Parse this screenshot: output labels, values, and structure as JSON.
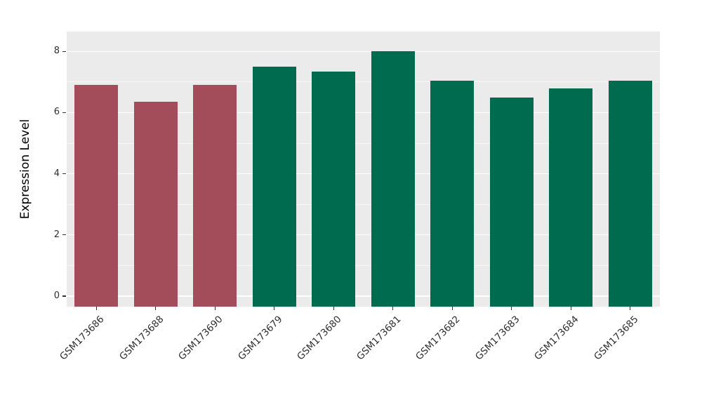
{
  "chart_data": {
    "type": "bar",
    "title": "",
    "xlabel": "",
    "ylabel": "Expression Level",
    "ylim": [
      0,
      8
    ],
    "yticks": [
      0,
      2,
      4,
      6,
      8
    ],
    "yticks_minor": [
      1,
      3,
      5,
      7
    ],
    "grid": true,
    "legend_position": "none",
    "plot_background": "#EBEBEB",
    "gridline_color": "#FFFFFF",
    "categories": [
      "GSM173686",
      "GSM173688",
      "GSM173690",
      "GSM173679",
      "GSM173680",
      "GSM173681",
      "GSM173682",
      "GSM173683",
      "GSM173684",
      "GSM173685"
    ],
    "values": [
      6.9,
      6.35,
      6.9,
      7.5,
      7.35,
      8.0,
      7.05,
      6.5,
      6.8,
      7.05
    ],
    "bar_colors": [
      "#A34D5A",
      "#A34D5A",
      "#A34D5A",
      "#006B4F",
      "#006B4F",
      "#006B4F",
      "#006B4F",
      "#006B4F",
      "#006B4F",
      "#006B4F"
    ],
    "group_colors": {
      "group1": "#A34D5A",
      "group2": "#006B4F"
    }
  }
}
